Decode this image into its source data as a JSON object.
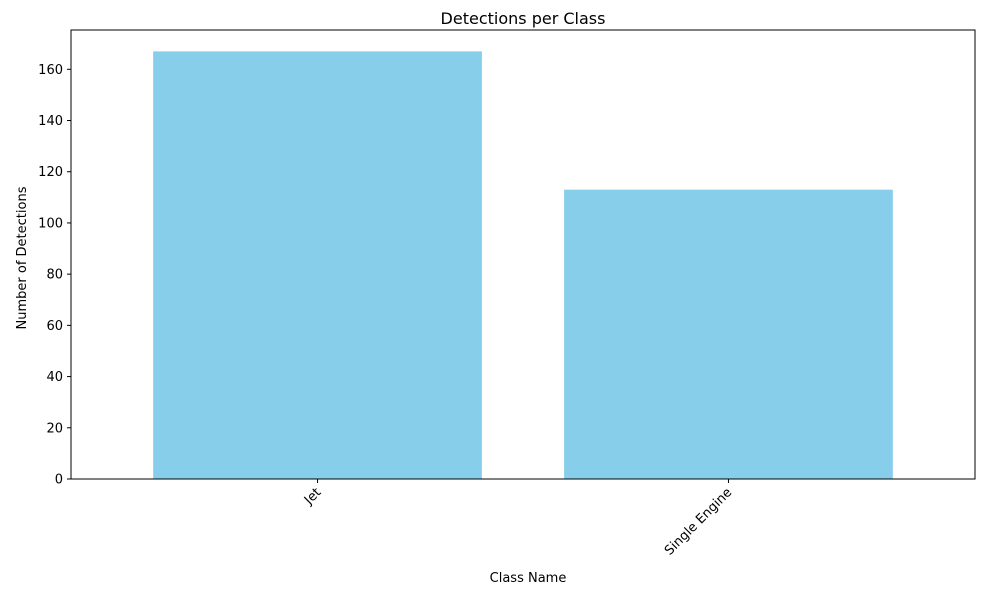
{
  "chart_data": {
    "type": "bar",
    "title": "Detections per Class",
    "xlabel": "Class Name",
    "ylabel": "Number of Detections",
    "categories": [
      "Jet",
      "Single Engine"
    ],
    "values": [
      167,
      113
    ],
    "ylim": [
      0,
      175.35
    ],
    "yticks": [
      0,
      20,
      40,
      60,
      80,
      100,
      120,
      140,
      160
    ],
    "bar_color": "#87ceeb",
    "x_tick_rotation_deg": 45,
    "grid": false,
    "legend": "none"
  }
}
